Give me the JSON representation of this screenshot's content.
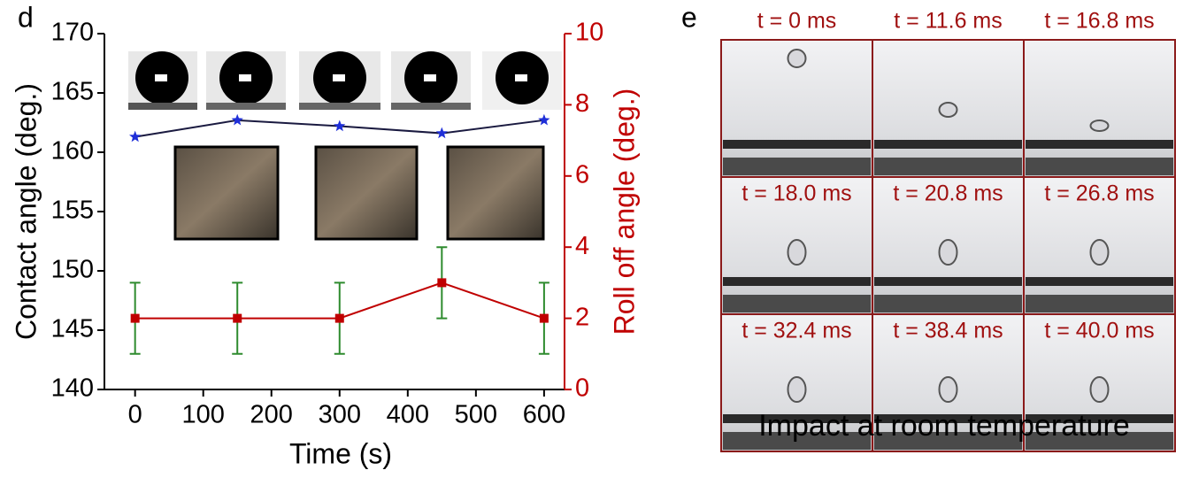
{
  "panel_labels": [
    "d",
    "e"
  ],
  "chart_data": {
    "type": "line",
    "x_label": "Time (s)",
    "y_label": "Contact angle (deg.)",
    "y2_label": "Roll off angle (deg.)",
    "x": [
      0,
      150,
      300,
      450,
      600
    ],
    "xlim": [
      -45,
      630
    ],
    "xticks": [
      0,
      100,
      200,
      300,
      400,
      500,
      600
    ],
    "ylim": [
      140,
      170
    ],
    "yticks": [
      140,
      145,
      150,
      155,
      160,
      165,
      170
    ],
    "y2lim": [
      0,
      10
    ],
    "y2ticks": [
      0,
      2,
      4,
      6,
      8,
      10
    ],
    "series": [
      {
        "color": "#1f2fd8",
        "line_color": "#1a1a40",
        "marker": "star",
        "values": [
          161.3,
          162.7,
          162.2,
          161.6,
          162.7
        ]
      },
      {
        "color": "#c00000",
        "line_color": "#c00000",
        "marker": "square",
        "axis": "y2",
        "values": [
          2,
          2,
          2,
          3,
          2
        ],
        "errors": [
          1,
          1,
          1,
          1,
          1
        ],
        "error_color": "#2e8b2e"
      }
    ]
  },
  "impact": {
    "frames": [
      "t = 0 ms",
      "t = 11.6 ms",
      "t = 16.8 ms",
      "t = 18.0 ms",
      "t = 20.8 ms",
      "t = 26.8 ms",
      "t = 32.4 ms",
      "t = 38.4 ms",
      "t = 40.0 ms"
    ],
    "caption": "Impact at room temperature"
  }
}
